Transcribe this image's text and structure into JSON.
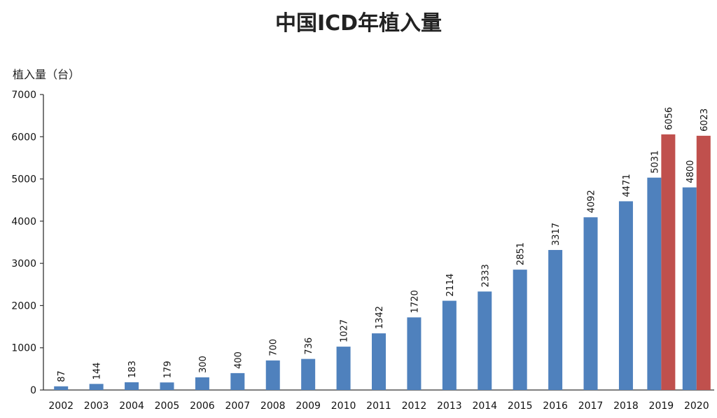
{
  "chart_data": {
    "type": "bar",
    "title": "中国ICD年植入量",
    "ylabel": "植入量（台）",
    "xlabel": "",
    "ylim": [
      0,
      7000
    ],
    "yticks": [
      0,
      1000,
      2000,
      3000,
      4000,
      5000,
      6000,
      7000
    ],
    "categories": [
      "2002",
      "2003",
      "2004",
      "2005",
      "2006",
      "2007",
      "2008",
      "2009",
      "2010",
      "2011",
      "2012",
      "2013",
      "2014",
      "2015",
      "2016",
      "2017",
      "2018",
      "2019",
      "2020"
    ],
    "series": [
      {
        "color": "#4f81bd",
        "values": [
          87,
          144,
          183,
          179,
          300,
          400,
          700,
          736,
          1027,
          1342,
          1720,
          2114,
          2333,
          2851,
          3317,
          4092,
          4471,
          5031,
          4800
        ]
      },
      {
        "color": "#c0504d",
        "values": [
          null,
          null,
          null,
          null,
          null,
          null,
          null,
          null,
          null,
          null,
          null,
          null,
          null,
          null,
          null,
          null,
          null,
          6056,
          6023
        ]
      }
    ],
    "grid": false,
    "legend": "none"
  }
}
